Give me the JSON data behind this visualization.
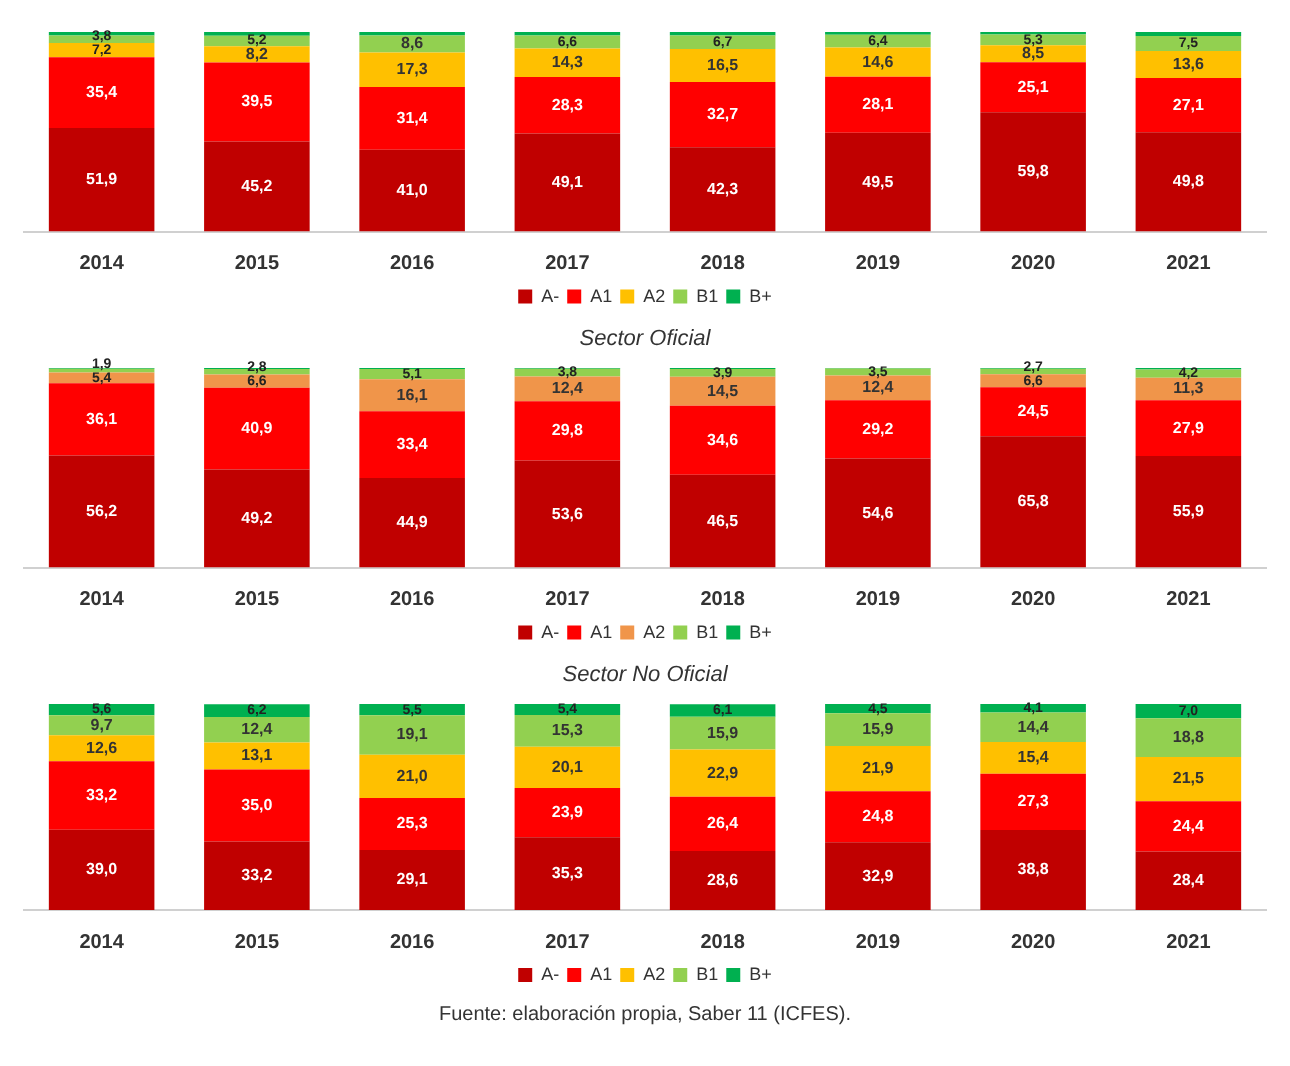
{
  "chart_data": [
    {
      "type": "bar",
      "stacked": true,
      "title": "Sector Oficial",
      "legend": "bottom",
      "tick_labels": "x",
      "ylim": [
        0,
        100
      ],
      "categories": [
        "2014",
        "2015",
        "2016",
        "2017",
        "2018",
        "2019",
        "2020",
        "2021"
      ],
      "series": [
        {
          "name": "A-",
          "color": "#c00000",
          "values": [
            51.9,
            45.2,
            41.0,
            49.1,
            42.3,
            49.5,
            59.8,
            49.8
          ],
          "value_labels": [
            "51,9",
            "45,2",
            "41,0",
            "49,1",
            "42,3",
            "49,5",
            "59,8",
            "49,8"
          ]
        },
        {
          "name": "A1",
          "color": "#ff0000",
          "values": [
            35.4,
            39.5,
            31.4,
            28.3,
            32.7,
            28.1,
            25.1,
            27.1
          ],
          "value_labels": [
            "35,4",
            "39,5",
            "31,4",
            "28,3",
            "32,7",
            "28,1",
            "25,1",
            "27,1"
          ]
        },
        {
          "name": "A2",
          "color": "#ffc000",
          "values": [
            7.2,
            8.2,
            17.3,
            14.3,
            16.5,
            14.6,
            8.5,
            13.6
          ],
          "value_labels": [
            "7,2",
            "8,2",
            "17,3",
            "14,3",
            "16,5",
            "14,6",
            "8,5",
            "13,6"
          ]
        },
        {
          "name": "B1",
          "color": "#92d050",
          "values": [
            3.8,
            5.2,
            8.6,
            6.6,
            6.7,
            6.4,
            5.3,
            7.5
          ],
          "value_labels": [
            "3,8",
            "5,2",
            "8,6",
            "6,6",
            "6,7",
            "6,4",
            "5,3",
            "7,5"
          ]
        },
        {
          "name": "B+",
          "color": "#00b050",
          "values": [
            1.7,
            1.9,
            1.7,
            1.7,
            1.8,
            1.4,
            1.3,
            2.0
          ]
        }
      ]
    },
    {
      "type": "bar",
      "stacked": true,
      "title": "Sector No Oficial",
      "legend": "bottom",
      "tick_labels": "x",
      "ylim": [
        0,
        100
      ],
      "categories": [
        "2014",
        "2015",
        "2016",
        "2017",
        "2018",
        "2019",
        "2020",
        "2021"
      ],
      "series": [
        {
          "name": "A-",
          "color": "#c00000",
          "values": [
            56.2,
            49.2,
            44.9,
            53.6,
            46.5,
            54.6,
            65.8,
            55.9
          ],
          "value_labels": [
            "56,2",
            "49,2",
            "44,9",
            "53,6",
            "46,5",
            "54,6",
            "65,8",
            "55,9"
          ]
        },
        {
          "name": "A1",
          "color": "#ff0000",
          "values": [
            36.1,
            40.9,
            33.4,
            29.8,
            34.6,
            29.2,
            24.5,
            27.9
          ],
          "value_labels": [
            "36,1",
            "40,9",
            "33,4",
            "29,8",
            "34,6",
            "29,2",
            "24,5",
            "27,9"
          ]
        },
        {
          "name": "A2",
          "color": "#f0954a",
          "values": [
            5.4,
            6.6,
            16.1,
            12.4,
            14.5,
            12.4,
            6.6,
            11.3
          ],
          "value_labels": [
            "5,4",
            "6,6",
            "16,1",
            "12,4",
            "14,5",
            "12,4",
            "6,6",
            "11,3"
          ]
        },
        {
          "name": "B1",
          "color": "#92d050",
          "values": [
            1.9,
            2.8,
            5.1,
            3.8,
            3.9,
            3.5,
            2.7,
            4.2
          ],
          "value_labels": [
            "1,9",
            "2,8",
            "5,1",
            "3,8",
            "3,9",
            "3,5",
            "2,7",
            "4,2"
          ]
        },
        {
          "name": "B+",
          "color": "#00b050",
          "values": [
            0.4,
            0.5,
            0.5,
            0.4,
            0.5,
            0.3,
            0.4,
            0.7
          ]
        }
      ]
    },
    {
      "type": "bar",
      "stacked": true,
      "legend": "bottom",
      "tick_labels": "x",
      "ylim": [
        0,
        100
      ],
      "categories": [
        "2014",
        "2015",
        "2016",
        "2017",
        "2018",
        "2019",
        "2020",
        "2021"
      ],
      "annotations": [
        "Fuente: elaboración propia, Saber 11 (ICFES)."
      ],
      "series": [
        {
          "name": "A-",
          "color": "#c00000",
          "values": [
            39.0,
            33.2,
            29.1,
            35.3,
            28.6,
            32.9,
            38.8,
            28.4
          ],
          "value_labels": [
            "39,0",
            "33,2",
            "29,1",
            "35,3",
            "28,6",
            "32,9",
            "38,8",
            "28,4"
          ]
        },
        {
          "name": "A1",
          "color": "#ff0000",
          "values": [
            33.2,
            35.0,
            25.3,
            23.9,
            26.4,
            24.8,
            27.3,
            24.4
          ],
          "value_labels": [
            "33,2",
            "35,0",
            "25,3",
            "23,9",
            "26,4",
            "24,8",
            "27,3",
            "24,4"
          ]
        },
        {
          "name": "A2",
          "color": "#ffc000",
          "values": [
            12.6,
            13.1,
            21.0,
            20.1,
            22.9,
            21.9,
            15.4,
            21.5
          ],
          "value_labels": [
            "12,6",
            "13,1",
            "21,0",
            "20,1",
            "22,9",
            "21,9",
            "15,4",
            "21,5"
          ]
        },
        {
          "name": "B1",
          "color": "#92d050",
          "values": [
            9.7,
            12.4,
            19.1,
            15.3,
            15.9,
            15.9,
            14.4,
            18.8
          ],
          "value_labels": [
            "9,7",
            "12,4",
            "19,1",
            "15,3",
            "15,9",
            "15,9",
            "14,4",
            "18,8"
          ]
        },
        {
          "name": "B+",
          "color": "#00b050",
          "values": [
            5.6,
            6.2,
            5.5,
            5.4,
            6.1,
            4.5,
            4.1,
            7.0
          ],
          "value_labels": [
            "5,6",
            "6,2",
            "5,5",
            "5,4",
            "6,1",
            "4,5",
            "4,1",
            "7,0"
          ]
        }
      ]
    }
  ]
}
